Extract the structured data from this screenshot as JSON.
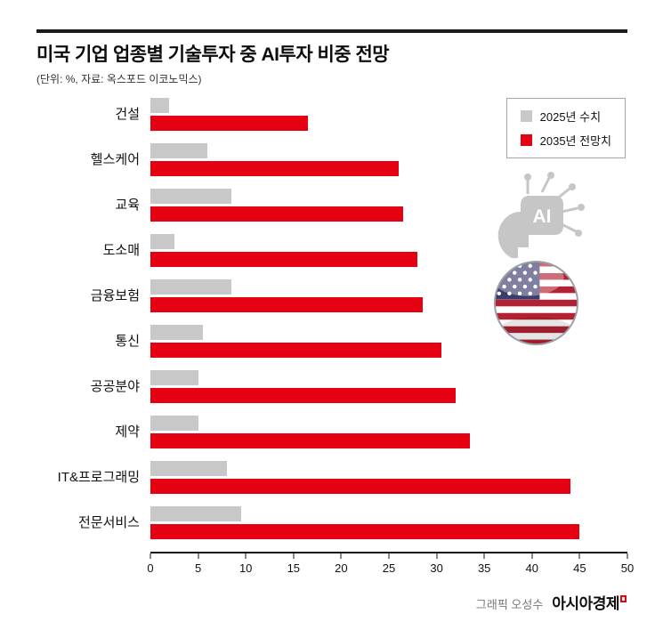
{
  "header": {
    "title": "미국 기업 업종별 기술투자 중 AI투자 비중 전망",
    "subtitle": "(단위: %, 자료: 옥스포드 이코노믹스)"
  },
  "legend": {
    "items": [
      {
        "label": "2025년 수치",
        "color": "#c8c8c8"
      },
      {
        "label": "2035년 전망치",
        "color": "#e50012"
      }
    ]
  },
  "chart_data": {
    "type": "bar",
    "orientation": "horizontal",
    "title": "미국 기업 업종별 기술투자 중 AI투자 비중 전망",
    "unit_note": "(단위: %, 자료: 옥스포드 이코노믹스)",
    "categories": [
      "건설",
      "헬스케어",
      "교육",
      "도소매",
      "금융보험",
      "통신",
      "공공분야",
      "제약",
      "IT&프로그래밍",
      "전문서비스"
    ],
    "series": [
      {
        "name": "2025년 수치",
        "color": "#c8c8c8",
        "values": [
          2,
          6,
          8.5,
          2.5,
          8.5,
          5.5,
          5,
          5,
          8,
          9.5
        ]
      },
      {
        "name": "2035년 전망치",
        "color": "#e50012",
        "values": [
          16.5,
          26,
          26.5,
          28,
          28.5,
          30.5,
          32,
          33.5,
          44,
          45
        ]
      }
    ],
    "xlabel": "",
    "ylabel": "",
    "xlim": [
      0,
      50
    ],
    "x_ticks": [
      0,
      5,
      10,
      15,
      20,
      25,
      30,
      35,
      40,
      45,
      50
    ],
    "grid": false,
    "legend_position": "top-right"
  },
  "icons": {
    "ai_chip_label": "AI"
  },
  "footer": {
    "credit": "그래픽 오성수",
    "brand": "아시아경제"
  }
}
